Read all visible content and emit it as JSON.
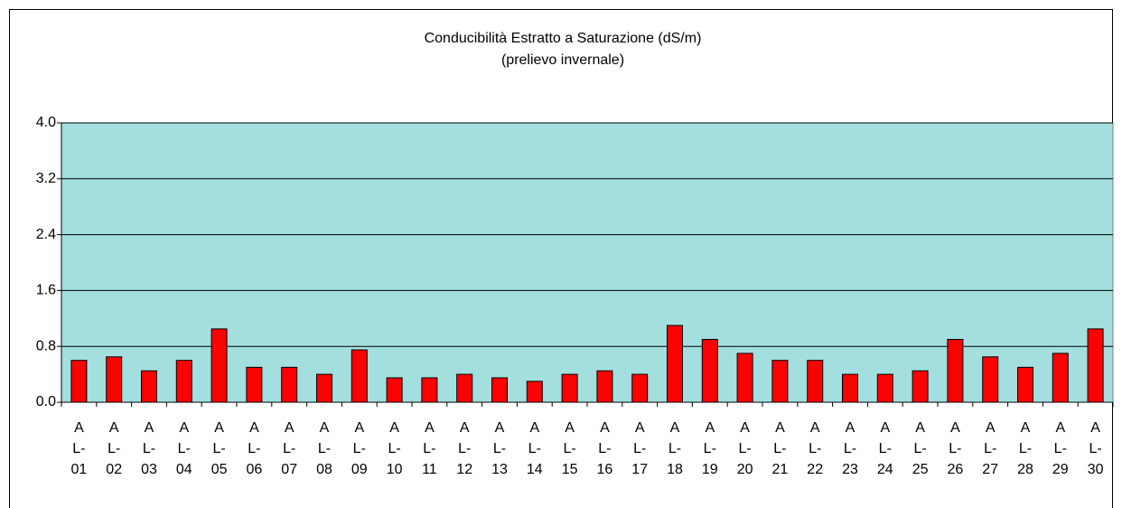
{
  "chart_data": {
    "type": "bar",
    "title": "Conducibilità Estratto a Saturazione (dS/m)",
    "subtitle": "(prelievo invernale)",
    "categories": [
      "AL-01",
      "AL-02",
      "AL-03",
      "AL-04",
      "AL-05",
      "AL-06",
      "AL-07",
      "AL-08",
      "AL-09",
      "AL-10",
      "AL-11",
      "AL-12",
      "AL-13",
      "AL-14",
      "AL-15",
      "AL-16",
      "AL-17",
      "AL-18",
      "AL-19",
      "AL-20",
      "AL-21",
      "AL-22",
      "AL-23",
      "AL-24",
      "AL-25",
      "AL-26",
      "AL-27",
      "AL-28",
      "AL-29",
      "AL-30"
    ],
    "values": [
      0.6,
      0.65,
      0.45,
      0.6,
      1.05,
      0.5,
      0.5,
      0.4,
      0.75,
      0.35,
      0.35,
      0.4,
      0.35,
      0.3,
      0.4,
      0.45,
      0.4,
      1.1,
      0.9,
      0.7,
      0.6,
      0.6,
      0.4,
      0.4,
      0.45,
      0.9,
      0.65,
      0.5,
      0.7,
      1.05
    ],
    "color": "#ff0000",
    "plot_background": "#a3dfdf",
    "ylim": [
      0,
      4
    ],
    "yticks": [
      {
        "value": 0,
        "label": "0.0"
      },
      0.8,
      1.6,
      2.4,
      3.2,
      {
        "value": 4,
        "label": "4.0"
      }
    ],
    "grid": true
  }
}
